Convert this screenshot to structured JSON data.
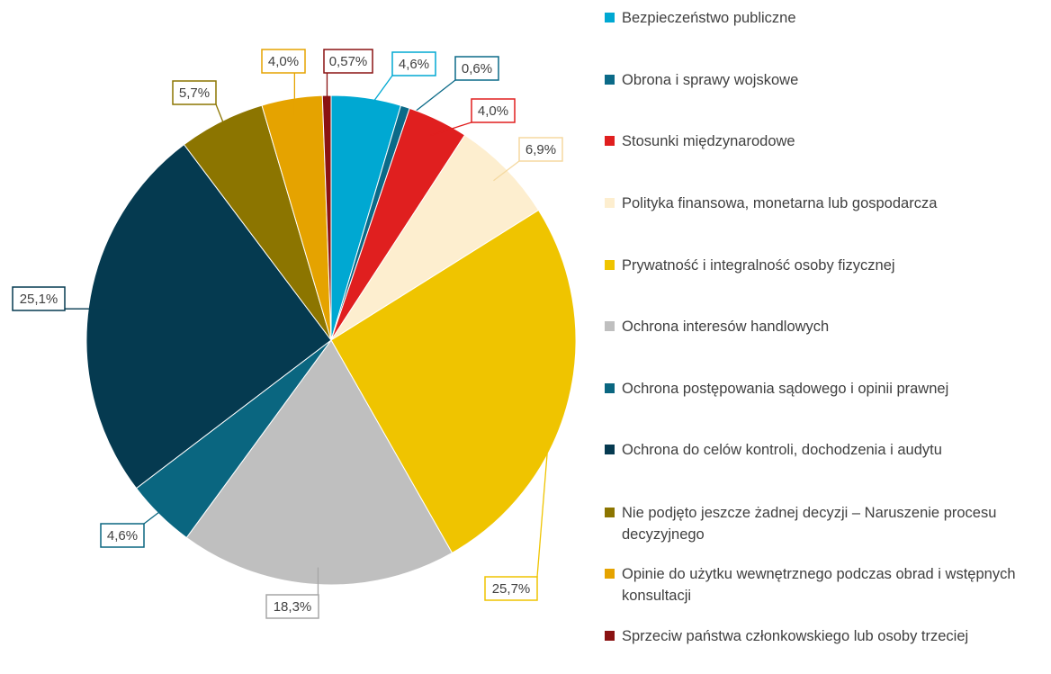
{
  "chart_data": {
    "type": "pie",
    "categories": [
      "Bezpieczeństwo publiczne",
      "Obrona i sprawy wojskowe",
      "Stosunki międzynarodowe",
      "Polityka finansowa, monetarna lub gospodarcza",
      "Prywatność i integralność osoby fizycznej",
      "Ochrona interesów handlowych",
      "Ochrona postępowania sądowego i opinii prawnej",
      "Ochrona do celów kontroli, dochodzenia i audytu",
      "Nie podjęto jeszcze żadnej decyzji – Naruszenie procesu decyzyjnego",
      "Opinie do użytku wewnętrznego podczas obrad i wstępnych konsultacji",
      "Sprzeciw państwa członkowskiego lub osoby trzeciej"
    ],
    "values": [
      4.6,
      0.6,
      4.0,
      6.9,
      25.7,
      18.3,
      4.6,
      25.1,
      5.7,
      4.0,
      0.57
    ],
    "value_labels": [
      "4,6%",
      "0,6%",
      "4,0%",
      "6,9%",
      "25,7%",
      "18,3%",
      "4,6%",
      "25,1%",
      "5,7%",
      "4,0%",
      "0,57%"
    ],
    "colors": [
      "#00a8d2",
      "#0b6a88",
      "#e01f1f",
      "#fdeecf",
      "#efc400",
      "#bfbfbf",
      "#0a6680",
      "#053a50",
      "#8c7500",
      "#e5a300",
      "#8a1212"
    ],
    "legend": "right"
  }
}
